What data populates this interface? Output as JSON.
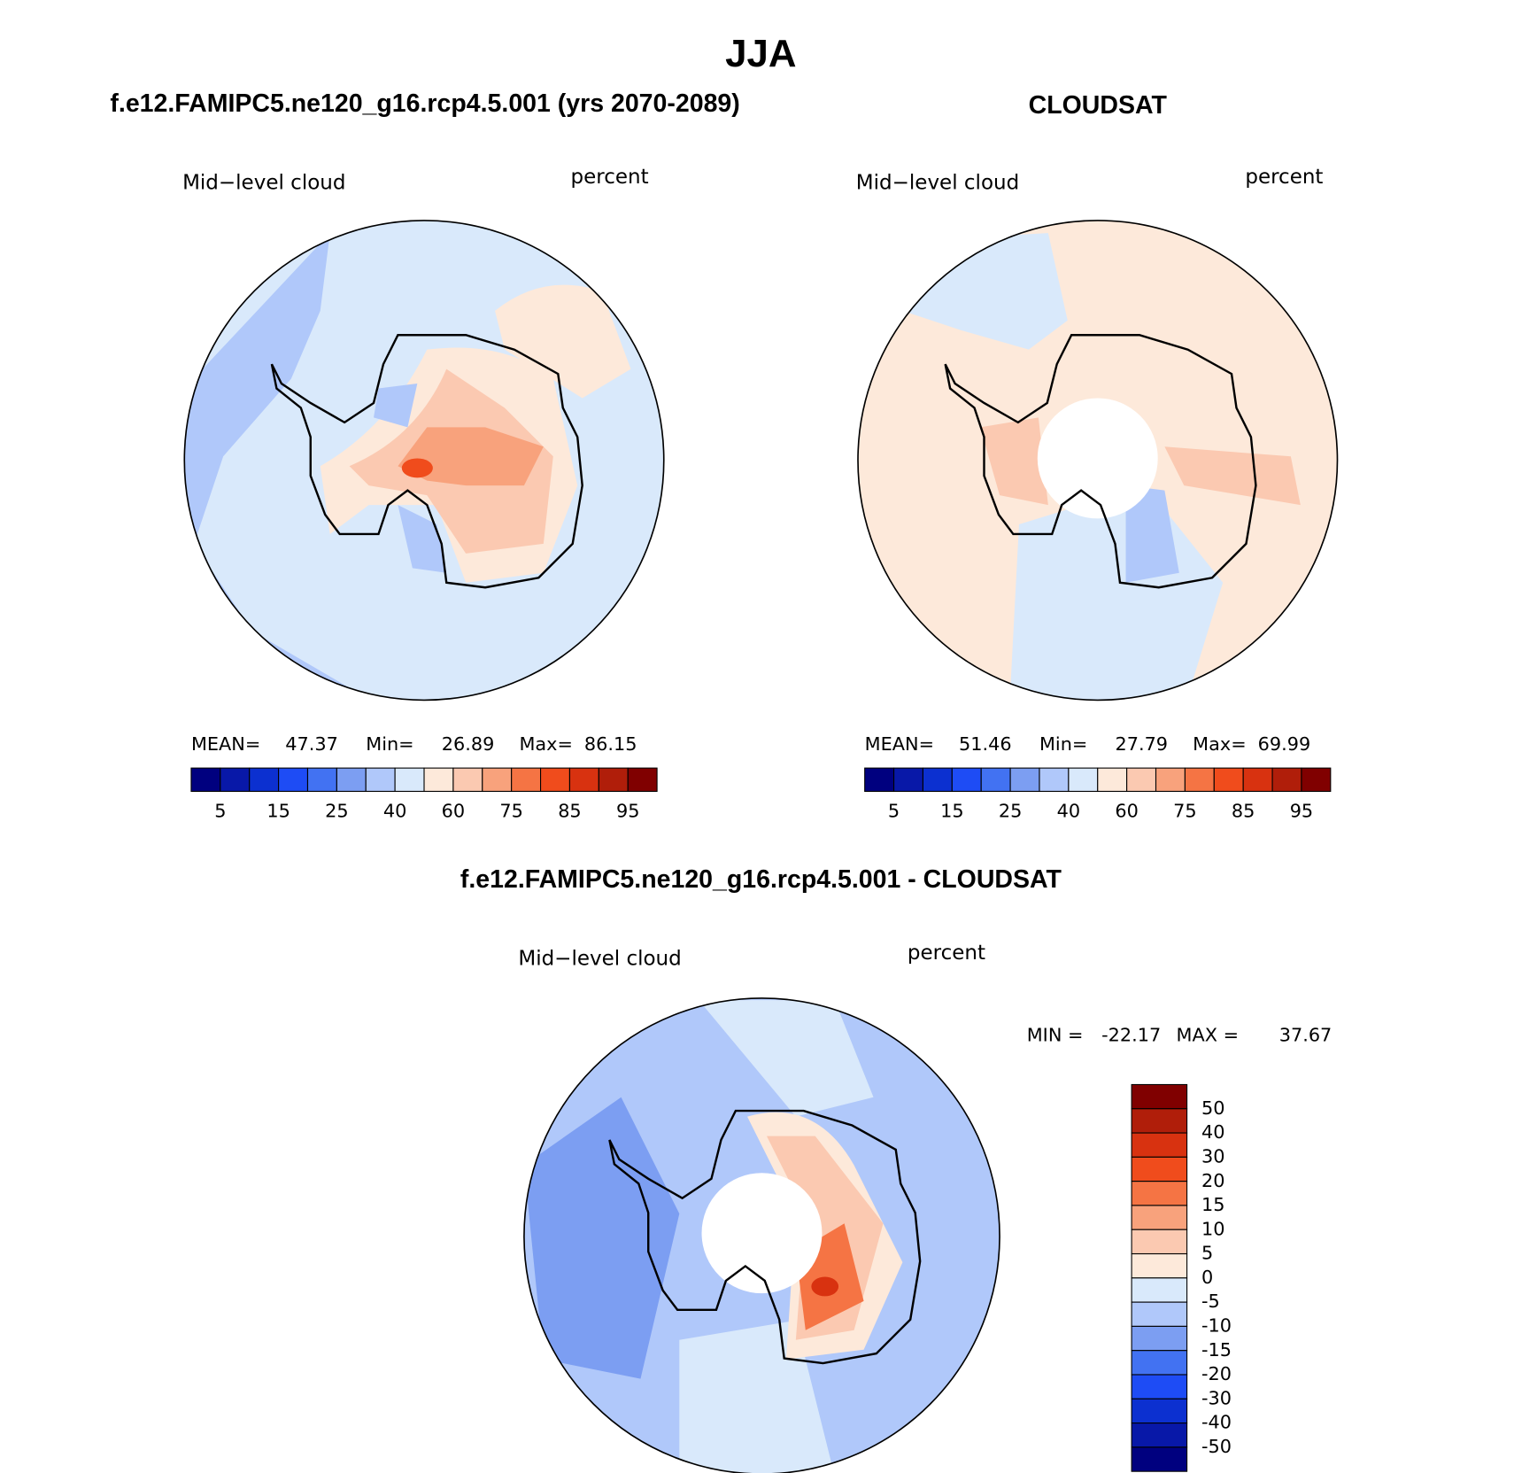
{
  "title": "JJA",
  "panels": [
    {
      "title": "f.e12.FAMIPC5.ne120_g16.rcp4.5.001 (yrs 2070-2089)",
      "variable": "Mid−level cloud",
      "units": "percent",
      "stats": {
        "mean_label": "MEAN=",
        "mean": 47.37,
        "min_label": "Min=",
        "min": 26.89,
        "max_label": "Max=",
        "max": 86.15
      }
    },
    {
      "title": "CLOUDSAT",
      "variable": "Mid−level cloud",
      "units": "percent",
      "stats": {
        "mean_label": "MEAN=",
        "mean": 51.46,
        "min_label": "Min=",
        "min": 27.79,
        "max_label": "Max=",
        "max": 69.99
      }
    },
    {
      "title": "f.e12.FAMIPC5.ne120_g16.rcp4.5.001 - CLOUDSAT",
      "variable": "Mid−level cloud",
      "units": "percent",
      "stats": {
        "min_label": "MIN =",
        "min": -22.17,
        "max_label": "MAX =",
        "max": 37.67
      }
    }
  ],
  "colorbar": {
    "labels": [
      5,
      15,
      25,
      40,
      60,
      75,
      85,
      95
    ],
    "colors": [
      "#00007f",
      "#0818a8",
      "#0c30d0",
      "#1e4cf5",
      "#4272f2",
      "#7c9ef2",
      "#b0c8fa",
      "#d9e9fb",
      "#fde9da",
      "#fbc9b1",
      "#f8a27c",
      "#f57444",
      "#f04c1c",
      "#d83210",
      "#b01e0a",
      "#800000"
    ]
  },
  "diff_colorbar": {
    "labels": [
      50,
      40,
      30,
      20,
      15,
      10,
      5,
      0,
      -5,
      -10,
      -15,
      -20,
      -30,
      -40,
      -50
    ]
  }
}
